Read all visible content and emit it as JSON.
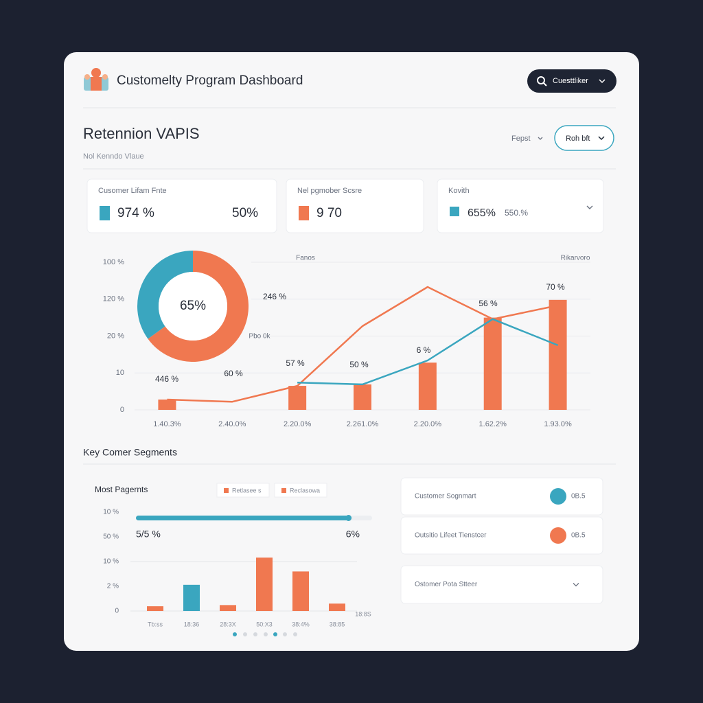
{
  "header": {
    "title": "Customelty Program Dashboard",
    "search": "Cuesttliker"
  },
  "section": {
    "title": "Retennion VAPIS",
    "subtitle": "Nol Kenndo Vlaue",
    "filters": [
      "Fepst",
      "Roh bft"
    ]
  },
  "kpis": [
    {
      "label": "Cusomer Lifam Fnte",
      "value": "974 %",
      "secondary": "50%",
      "color": "#3aa6bf"
    },
    {
      "label": "Nel pgmober Scsre",
      "value": "9 70",
      "color": "#f07850"
    },
    {
      "label": "Kovith",
      "value": "655%",
      "secondary": "550.%",
      "color": "#3aa6bf"
    }
  ],
  "chart_data": [
    {
      "type": "pie",
      "values": [
        65,
        35
      ],
      "colors": [
        "#f07850",
        "#3aa6bf"
      ],
      "center_label": "65%"
    },
    {
      "type": "bar",
      "categories": [
        "1.40.3%",
        "2.40.0%",
        "2.20.0%",
        "2.261.0%",
        "2.20.0%",
        "1.62.2%",
        "1.93.0%"
      ],
      "ylim": [
        0,
        40
      ],
      "yticks": [
        0,
        10,
        20,
        30,
        40
      ],
      "y_axis_labels": [
        "0",
        "10",
        "20 %",
        "120 %",
        "100 %"
      ],
      "grid": true,
      "series": [
        {
          "type": "bar",
          "color": "#f07850",
          "values": [
            2.8,
            null,
            6.5,
            6.9,
            12.8,
            25,
            29.8
          ]
        },
        {
          "type": "line",
          "color": "#f07850",
          "values": [
            2.8,
            2.2,
            6.5,
            22.7,
            33.3,
            24.6,
            28.3
          ]
        },
        {
          "type": "line",
          "color": "#3aa6bf",
          "values": [
            null,
            null,
            7.4,
            6.9,
            13.4,
            24.6,
            17.5
          ]
        }
      ],
      "annotations": [
        "446 %",
        "60 %",
        "57 %",
        "50 %",
        "6 %",
        "56 %",
        "70 %",
        "246 %",
        "Pbo 0k",
        "Fanos",
        "Rikarvoro"
      ]
    },
    {
      "type": "bar",
      "title": "Most Pagernts",
      "legend": [
        "Retlasee s",
        "Reclasowa"
      ],
      "legend_color": "#f07850",
      "categories": [
        "Tb:ss",
        "18:36",
        "28:3X",
        "50:X3",
        "38:4%",
        "38:85"
      ],
      "x_axis_end_label": "18:8S",
      "values": [
        4.8,
        26.5,
        6,
        54,
        40,
        7.5
      ],
      "colors": [
        "#f07850",
        "#3aa6bf",
        "#f07850",
        "#f07850",
        "#f07850",
        "#f07850"
      ],
      "ylim": [
        0,
        100
      ],
      "yticks": [
        0,
        25,
        50,
        75,
        100
      ],
      "y_axis_labels": [
        "0",
        "2 %",
        "10 %",
        "50 %",
        "10 %"
      ],
      "progress": {
        "value": 90,
        "max": 100,
        "color": "#3aa6bf",
        "labels": [
          "5/5 %",
          "6%"
        ]
      }
    }
  ],
  "segments": {
    "title": "Key Comer Segments",
    "items": [
      {
        "label": "Customer Sognmart",
        "value": "0B.5",
        "color": "#3aa6bf"
      },
      {
        "label": "Outsitio Lifeet Tienstcer",
        "value": "0B.5",
        "color": "#f07850"
      },
      {
        "label": "Ostomer Pota Stteer"
      }
    ]
  }
}
